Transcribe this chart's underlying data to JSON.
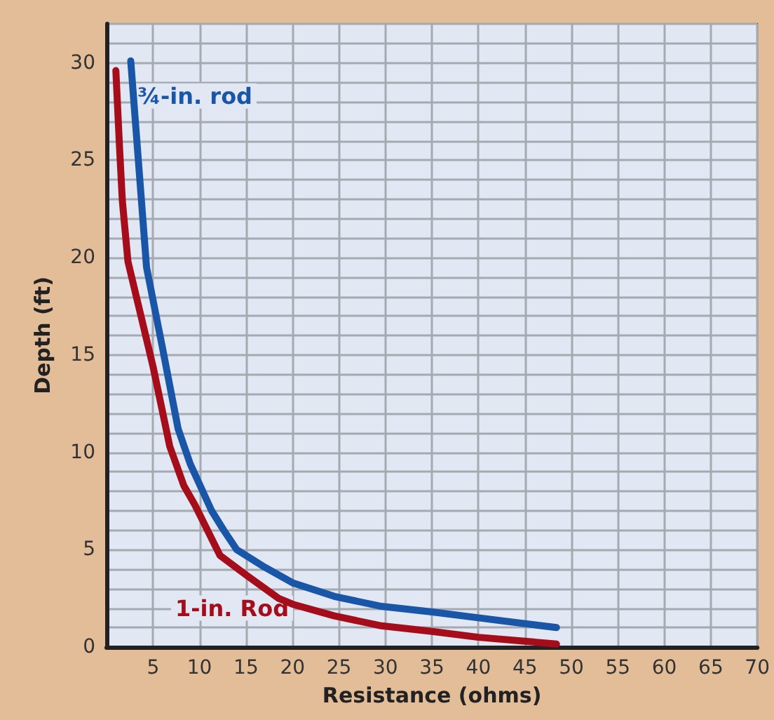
{
  "chart_data": {
    "type": "line",
    "xlabel": "Resistance (ohms)",
    "ylabel": "Depth (ft)",
    "series": [
      {
        "name": "¾-in. rod",
        "color": "#1a56a8",
        "x": [
          2.6,
          4.3,
          6.0,
          7.7,
          9.0,
          11.3,
          12.6,
          14.0,
          17.0,
          20.0,
          24.5,
          29.4,
          35.0,
          40.0,
          45.0,
          48.4
        ],
        "values": [
          30.1,
          19.5,
          15.4,
          11.2,
          9.4,
          7.0,
          6.0,
          5.0,
          4.1,
          3.3,
          2.6,
          2.1,
          1.8,
          1.5,
          1.2,
          1.0
        ]
      },
      {
        "name": "1-in. Rod",
        "color": "#a50d1a",
        "x": [
          1.0,
          1.4,
          1.7,
          2.3,
          5.0,
          6.8,
          8.3,
          9.5,
          12.2,
          15.0,
          18.5,
          20.0,
          24.5,
          29.4,
          35.0,
          40.0,
          45.0,
          48.4
        ],
        "values": [
          29.6,
          25.6,
          22.9,
          19.8,
          14.4,
          10.3,
          8.3,
          7.3,
          4.7,
          3.7,
          2.5,
          2.2,
          1.6,
          1.1,
          0.8,
          0.5,
          0.3,
          0.15
        ]
      }
    ],
    "xlim": [
      0,
      70
    ],
    "xticks": [
      {
        "value": 0,
        "label": null
      },
      5,
      10,
      15,
      20,
      25,
      30,
      35,
      40,
      45,
      50,
      55,
      60,
      65,
      70
    ],
    "ylim": [
      0,
      32
    ],
    "yticks": [
      0,
      {
        "value": 1,
        "label": null
      },
      {
        "value": 2,
        "label": null
      },
      {
        "value": 3,
        "label": null
      },
      {
        "value": 4,
        "label": null
      },
      5,
      {
        "value": 6,
        "label": null
      },
      {
        "value": 7,
        "label": null
      },
      {
        "value": 8,
        "label": null
      },
      {
        "value": 9,
        "label": null
      },
      10,
      {
        "value": 11,
        "label": null
      },
      {
        "value": 12,
        "label": null
      },
      {
        "value": 13,
        "label": null
      },
      {
        "value": 14,
        "label": null
      },
      15,
      {
        "value": 16,
        "label": null
      },
      {
        "value": 17,
        "label": null
      },
      {
        "value": 18,
        "label": null
      },
      {
        "value": 19,
        "label": null
      },
      20,
      {
        "value": 21,
        "label": null
      },
      {
        "value": 22,
        "label": null
      },
      {
        "value": 23,
        "label": null
      },
      {
        "value": 24,
        "label": null
      },
      25,
      {
        "value": 26,
        "label": null
      },
      {
        "value": 27,
        "label": null
      },
      {
        "value": 28,
        "label": null
      },
      {
        "value": 29,
        "label": null
      },
      30,
      {
        "value": 31,
        "label": null
      },
      {
        "value": 32,
        "label": null
      }
    ],
    "grid": true,
    "legend": false,
    "marker": "none",
    "line_style": "solid"
  }
}
